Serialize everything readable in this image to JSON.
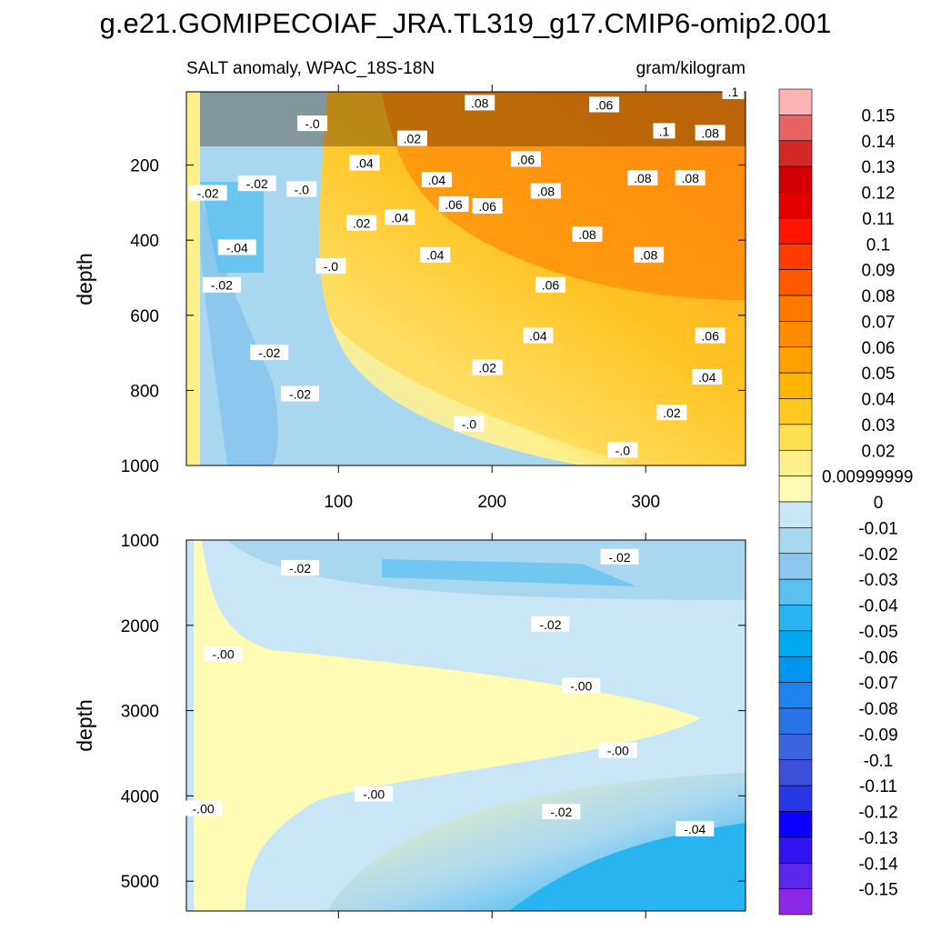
{
  "figure": {
    "title": "g.e21.GOMIPECOIAF_JRA.TL319_g17.CMIP6-omip2.001",
    "left_string": "SALT anomaly, WPAC_18S-18N",
    "right_string": "gram/kilogram"
  },
  "colorbar": {
    "labels": [
      "0.15",
      "0.14",
      "0.13",
      "0.12",
      "0.11",
      "0.1",
      "0.09",
      "0.08",
      "0.07",
      "0.06",
      "0.05",
      "0.04",
      "0.03",
      "0.02",
      "0.00999999",
      "0",
      "-0.01",
      "-0.02",
      "-0.03",
      "-0.04",
      "-0.05",
      "-0.06",
      "-0.07",
      "-0.08",
      "-0.09",
      "-0.1",
      "-0.11",
      "-0.12",
      "-0.13",
      "-0.14",
      "-0.15"
    ],
    "colors": [
      "#ffb4b4",
      "#e86464",
      "#d42828",
      "#d20000",
      "#e40000",
      "#ff1400",
      "#ff3c00",
      "#ff5a00",
      "#ff7800",
      "#ff8c00",
      "#ffa000",
      "#ffb400",
      "#ffc81e",
      "#ffe050",
      "#fff08c",
      "#fffab4",
      "#c8e6f5",
      "#aad7f0",
      "#8cc8ee",
      "#5ac0f0",
      "#28b4f0",
      "#00aaf0",
      "#0096f0",
      "#1e82f0",
      "#2873e6",
      "#3c64dc",
      "#3c50dc",
      "#2837e6",
      "#0a00ff",
      "#3214f0",
      "#5a28eb",
      "#8c28e6"
    ]
  },
  "chart_data": [
    {
      "type": "heatmap",
      "panel": "upper",
      "ylabel": "depth",
      "xlabel": "",
      "xlim": [
        1,
        365
      ],
      "ylim": [
        1000,
        5
      ],
      "x_ticks": [
        100,
        200,
        300
      ],
      "y_ticks": [
        200,
        400,
        600,
        800,
        1000
      ],
      "contour_labels": [
        {
          "text": "-.0",
          "x": 83,
          "y": 90
        },
        {
          "text": "-.02",
          "x": 15,
          "y": 275
        },
        {
          "text": "-.02",
          "x": 47,
          "y": 250
        },
        {
          "text": "-.0",
          "x": 76,
          "y": 265
        },
        {
          "text": "-.04",
          "x": 34,
          "y": 420
        },
        {
          "text": "-.02",
          "x": 24,
          "y": 520
        },
        {
          "text": "-.0",
          "x": 95,
          "y": 470
        },
        {
          "text": "-.02",
          "x": 55,
          "y": 700
        },
        {
          "text": "-.02",
          "x": 75,
          "y": 810
        },
        {
          "text": ".04",
          "x": 117,
          "y": 195
        },
        {
          "text": ".02",
          "x": 148,
          "y": 130
        },
        {
          "text": ".02",
          "x": 115,
          "y": 355
        },
        {
          "text": ".04",
          "x": 140,
          "y": 340
        },
        {
          "text": ".04",
          "x": 164,
          "y": 240
        },
        {
          "text": ".06",
          "x": 175,
          "y": 305
        },
        {
          "text": ".06",
          "x": 197,
          "y": 310
        },
        {
          "text": ".04",
          "x": 163,
          "y": 440
        },
        {
          "text": ".08",
          "x": 192,
          "y": 35
        },
        {
          "text": ".06",
          "x": 222,
          "y": 185
        },
        {
          "text": ".08",
          "x": 235,
          "y": 270
        },
        {
          "text": ".06",
          "x": 273,
          "y": 40
        },
        {
          "text": ".1",
          "x": 312,
          "y": 110
        },
        {
          "text": ".08",
          "x": 298,
          "y": 235
        },
        {
          "text": ".08",
          "x": 329,
          "y": 235
        },
        {
          "text": ".08",
          "x": 342,
          "y": 115
        },
        {
          "text": ".08",
          "x": 262,
          "y": 385
        },
        {
          "text": ".08",
          "x": 302,
          "y": 440
        },
        {
          "text": ".06",
          "x": 238,
          "y": 520
        },
        {
          "text": ".04",
          "x": 230,
          "y": 655
        },
        {
          "text": ".02",
          "x": 197,
          "y": 740
        },
        {
          "text": ".06",
          "x": 342,
          "y": 655
        },
        {
          "text": ".04",
          "x": 340,
          "y": 765
        },
        {
          "text": ".02",
          "x": 317,
          "y": 860
        },
        {
          "text": "-.0",
          "x": 185,
          "y": 890
        },
        {
          "text": "-.0",
          "x": 285,
          "y": 960
        },
        {
          "text": ".1",
          "x": 357,
          "y": 5
        }
      ]
    },
    {
      "type": "heatmap",
      "panel": "lower",
      "ylabel": "depth",
      "xlabel": "",
      "xlim": [
        1,
        365
      ],
      "ylim": [
        1000,
        5350
      ],
      "y_ticks": [
        1000,
        2000,
        3000,
        4000,
        5000
      ],
      "contour_labels": [
        {
          "text": "-.02",
          "x": 75,
          "y": 1330
        },
        {
          "text": "-.02",
          "x": 283,
          "y": 1200
        },
        {
          "text": "-.02",
          "x": 238,
          "y": 1990
        },
        {
          "text": "-.00",
          "x": 25,
          "y": 2340
        },
        {
          "text": "-.00",
          "x": 258,
          "y": 2710
        },
        {
          "text": "-.00",
          "x": 282,
          "y": 3470
        },
        {
          "text": "-.00",
          "x": 123,
          "y": 3980
        },
        {
          "text": "-.00",
          "x": 12,
          "y": 4150
        },
        {
          "text": "-.02",
          "x": 245,
          "y": 4190
        },
        {
          "text": "-.04",
          "x": 332,
          "y": 4390
        }
      ]
    }
  ]
}
